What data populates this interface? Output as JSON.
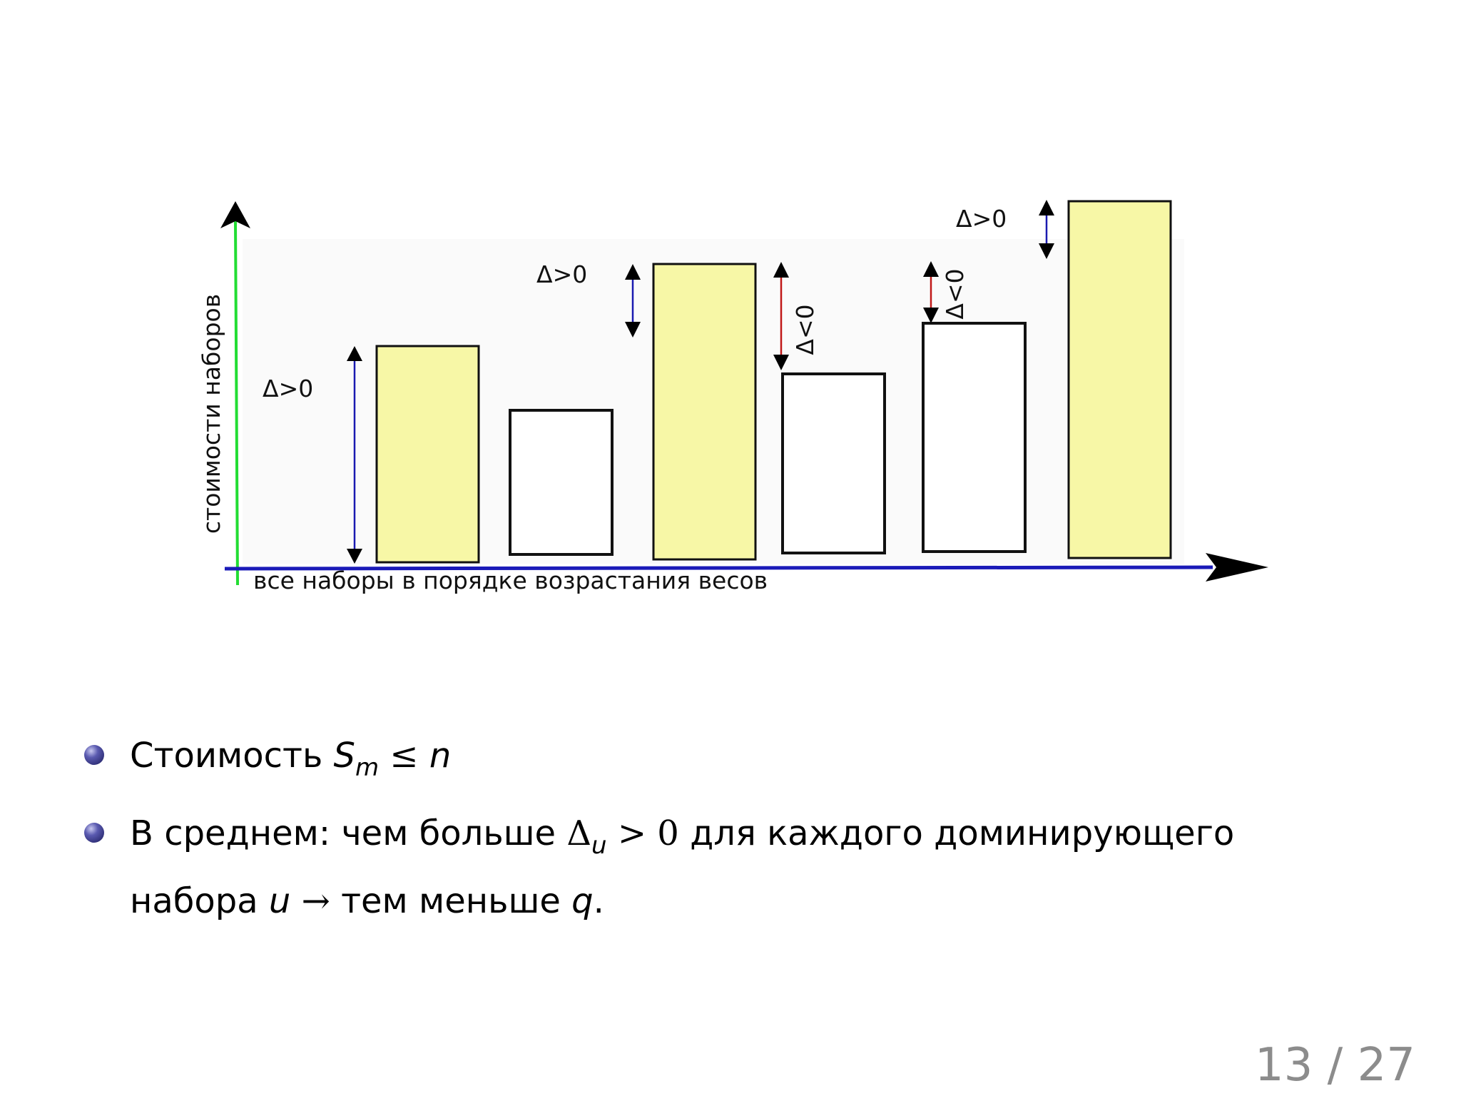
{
  "diagram": {
    "y_axis_label": "стоимости наборов",
    "x_axis_label": "все наборы в порядке возрастания весов",
    "delta_labels": {
      "positive": "Δ>0",
      "negative": "Δ<0"
    },
    "colors": {
      "dominating_fill": "#f7f7a6",
      "other_fill": "#ffffff",
      "y_axis": "#22dd33",
      "x_axis": "#1a1ab8",
      "arrow_positive": "#1a1ab0",
      "arrow_negative": "#c01818"
    }
  },
  "bullets": {
    "b1_text": "Стоимость ",
    "b1_var": "S",
    "b1_sub": "m",
    "b1_rel": " ≤ ",
    "b1_end": "n",
    "b2_text": "В среднем: чем больше ",
    "b2_delta": "Δ",
    "b2_sub": "u",
    "b2_rel": " > 0",
    "b2_text2": " для каждого доминирующего набора ",
    "b2_u": "u",
    "b2_arrow": " → ",
    "b2_text3": "тем меньше ",
    "b2_q": "q",
    "b2_end": "."
  },
  "page_number": "13 / 27"
}
